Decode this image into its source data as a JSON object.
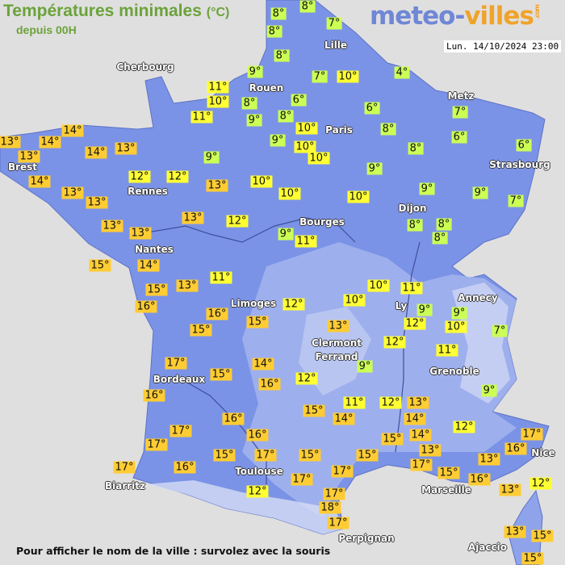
{
  "header": {
    "title": "Températures minimales",
    "unit": "(°C)",
    "subtitle": "depuis 00H"
  },
  "logo": {
    "part1": "meteo-",
    "part2": "villes",
    "suffix": ".com"
  },
  "datetime": "Lun. 14/10/2024 23:00",
  "footer": "Pour afficher le nom de la ville : survolez avec la souris",
  "colors": {
    "cold": "#ccff55",
    "mild": "#ffff33",
    "warm": "#ffcc33",
    "land": "#7b93e6",
    "sea": "#e0dfdf",
    "title": "#6aa33a"
  },
  "cities": [
    "Cherbourg",
    "Lille",
    "Rouen",
    "Paris",
    "Metz",
    "Strasbourg",
    "Brest",
    "Rennes",
    "Dijon",
    "Bourges",
    "Nantes",
    "Annecy",
    "Limoges",
    "Ly",
    "Clermont",
    "Ferrand",
    "Grenoble",
    "Bordeaux",
    "Nice",
    "Toulouse",
    "Marseille",
    "Biarritz",
    "Perpignan",
    "Ajaccio"
  ],
  "temperatures": [
    "8°",
    "8°",
    "8°",
    "7°",
    "8°",
    "9°",
    "11°",
    "10°",
    "7°",
    "10°",
    "4°",
    "8°",
    "6°",
    "11°",
    "9°",
    "8°",
    "6°",
    "10°",
    "7°",
    "8°",
    "9°",
    "10°",
    "6°",
    "10°",
    "8°",
    "6°",
    "9°",
    "13°",
    "13°",
    "14°",
    "14°",
    "14°",
    "13°",
    "12°",
    "12°",
    "13°",
    "10°",
    "9°",
    "14°",
    "13°",
    "13°",
    "10°",
    "10°",
    "9°",
    "9°",
    "7°",
    "13°",
    "13°",
    "13°",
    "12°",
    "9°",
    "11°",
    "8°",
    "8°",
    "8°",
    "15°",
    "14°",
    "15°",
    "13°",
    "11°",
    "16°",
    "16°",
    "15°",
    "15°",
    "12°",
    "10°",
    "10°",
    "11°",
    "9°",
    "9°",
    "10°",
    "12°",
    "13°",
    "7°",
    "12°",
    "11°",
    "9°",
    "17°",
    "15°",
    "14°",
    "16°",
    "12°",
    "16°",
    "11°",
    "12°",
    "13°",
    "15°",
    "14°",
    "14°",
    "16°",
    "9°",
    "12°",
    "16°",
    "14°",
    "15°",
    "17°",
    "17°",
    "15°",
    "17°",
    "15°",
    "15°",
    "13°",
    "17°",
    "16°",
    "17°",
    "15°",
    "13°",
    "17°",
    "16°",
    "17°",
    "17°",
    "16°",
    "13°",
    "12°",
    "12°",
    "17°",
    "18°",
    "17°",
    "13°",
    "15°",
    "15°"
  ]
}
